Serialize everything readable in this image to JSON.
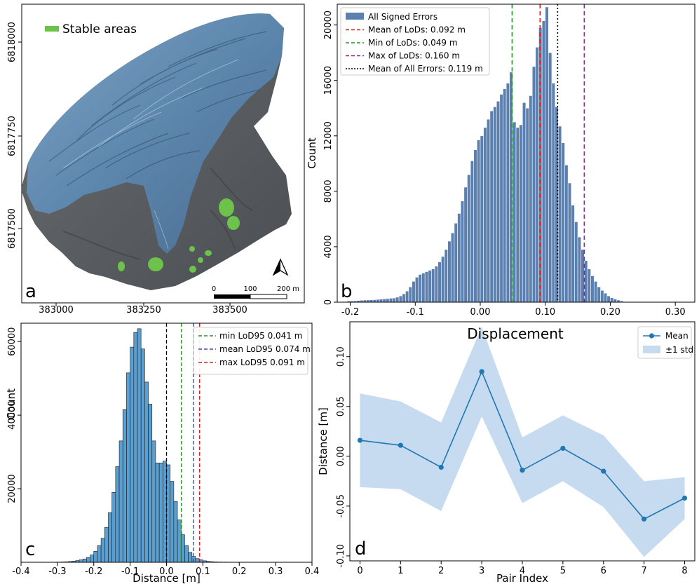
{
  "colors": {
    "bar_b": "#5b7fae",
    "bar_c": "#5b9fd0",
    "line_d": "#1f77b4",
    "band_d": "#c6dbef",
    "red": "#e41a1c",
    "green": "#1a9a1a",
    "purple": "#9a1a9a",
    "blue": "#3a4fa0",
    "stable": "#6cc24a"
  },
  "panel_a": {
    "label": "a",
    "legend": "Stable areas",
    "x_ticks": [
      "383000",
      "383250",
      "383500"
    ],
    "y_ticks": [
      "6818000",
      "6817750",
      "6817500"
    ],
    "scalebar": [
      "0",
      "100",
      "200 m"
    ],
    "north_icon": "north-arrow-icon"
  },
  "chart_data": [
    {
      "id": "b",
      "type": "bar",
      "label": "b",
      "ylabel": "Count",
      "xlim": [
        -0.22,
        0.33
      ],
      "ylim": [
        0,
        21500
      ],
      "x_ticks": [
        -0.2,
        -0.1,
        0.0,
        0.1,
        0.2,
        0.3
      ],
      "x_tick_labels": [
        "-0.2",
        "-0.1",
        "0.00",
        "0.10",
        "0.20",
        "0.30"
      ],
      "y_ticks": [
        0,
        4000,
        8000,
        12000,
        16000,
        20000
      ],
      "bin_start": -0.205,
      "bin_width": 0.005,
      "values": [
        80,
        90,
        100,
        120,
        140,
        150,
        160,
        170,
        180,
        200,
        220,
        240,
        260,
        280,
        300,
        360,
        450,
        600,
        800,
        1100,
        1500,
        1800,
        2000,
        2100,
        2200,
        2300,
        2400,
        2600,
        2900,
        3300,
        3800,
        4400,
        5000,
        5700,
        6400,
        7300,
        8300,
        9200,
        10200,
        11000,
        11700,
        12000,
        12600,
        13200,
        13800,
        14100,
        14500,
        15000,
        15400,
        15800,
        16600,
        13000,
        12600,
        12800,
        14400,
        14000,
        14900,
        17000,
        18400,
        19800,
        20300,
        21300,
        18000,
        15800,
        14100,
        12700,
        11500,
        9900,
        8600,
        7000,
        5800,
        4700,
        3800,
        3000,
        2400,
        1900,
        1500,
        1100,
        850,
        650,
        450,
        320,
        230,
        150,
        90
      ],
      "legend": [
        {
          "label": "All Signed Errors",
          "kind": "patch"
        },
        {
          "label": "Mean of LoDs: 0.092 m",
          "kind": "line",
          "color": "red",
          "x": 0.092
        },
        {
          "label": "Min of LoDs: 0.049 m",
          "kind": "line",
          "color": "green",
          "x": 0.049
        },
        {
          "label": "Max of LoDs: 0.160 m",
          "kind": "line",
          "color": "purple",
          "x": 0.16
        },
        {
          "label": "Mean of All Errors: 0.119 m",
          "kind": "dotted",
          "color": "black",
          "x": 0.119
        }
      ]
    },
    {
      "id": "c",
      "type": "bar",
      "label": "c",
      "xlabel": "Distance [m]",
      "ylabel": "Count",
      "xlim": [
        -0.4,
        0.4
      ],
      "ylim": [
        0,
        65000
      ],
      "x_ticks": [
        -0.4,
        -0.3,
        -0.2,
        -0.1,
        0.0,
        0.1,
        0.2,
        0.3,
        0.4
      ],
      "x_tick_labels": [
        "-0.4",
        "-0.3",
        "-0.2",
        "-0.1",
        "0.0",
        "0.1",
        "0.2",
        "0.3",
        "0.4"
      ],
      "y_ticks": [
        20000,
        40000,
        60000
      ],
      "bin_start": -0.3,
      "bin_width": 0.01,
      "values": [
        50,
        80,
        120,
        200,
        300,
        450,
        650,
        900,
        1300,
        2000,
        3000,
        4500,
        6500,
        9500,
        13500,
        19000,
        26000,
        33000,
        41500,
        51500,
        58500,
        62500,
        63500,
        58000,
        49000,
        43000,
        33000,
        27000,
        27000,
        27500,
        26500,
        22000,
        16500,
        11500,
        7500,
        4500,
        2700,
        1600,
        1000,
        650,
        400,
        250,
        150,
        100,
        70,
        60,
        50,
        40,
        30,
        20
      ],
      "zero_line_x": 0.0,
      "legend": [
        {
          "label": "min LoD95 0.041 m",
          "color": "green",
          "x": 0.041
        },
        {
          "label": "mean LoD95 0.074 m",
          "color": "blue",
          "x": 0.074
        },
        {
          "label": "max LoD95 0.091 m",
          "color": "red",
          "x": 0.091
        }
      ]
    },
    {
      "id": "d",
      "type": "line",
      "label": "d",
      "title": "Displacement",
      "xlabel": "Pair Index",
      "ylabel": "Distance [m]",
      "xlim": [
        -0.25,
        8.25
      ],
      "ylim": [
        -0.105,
        0.135
      ],
      "x_ticks": [
        0,
        1,
        2,
        3,
        4,
        5,
        6,
        7,
        8
      ],
      "y_ticks": [
        -0.1,
        -0.05,
        0.0,
        0.05,
        0.1
      ],
      "y_tick_labels": [
        "-0.10",
        "-0.05",
        "0.00",
        "0.05",
        "0.10"
      ],
      "x": [
        0,
        1,
        2,
        3,
        4,
        5,
        6,
        7,
        8
      ],
      "mean": [
        0.016,
        0.011,
        -0.011,
        0.085,
        -0.014,
        0.008,
        -0.015,
        -0.063,
        -0.042
      ],
      "upper": [
        0.063,
        0.055,
        0.034,
        0.13,
        0.019,
        0.041,
        0.021,
        -0.025,
        -0.021
      ],
      "lower": [
        -0.031,
        -0.033,
        -0.055,
        0.04,
        -0.047,
        -0.025,
        -0.051,
        -0.101,
        -0.063
      ],
      "legend": [
        "Mean",
        "±1 std"
      ]
    }
  ]
}
